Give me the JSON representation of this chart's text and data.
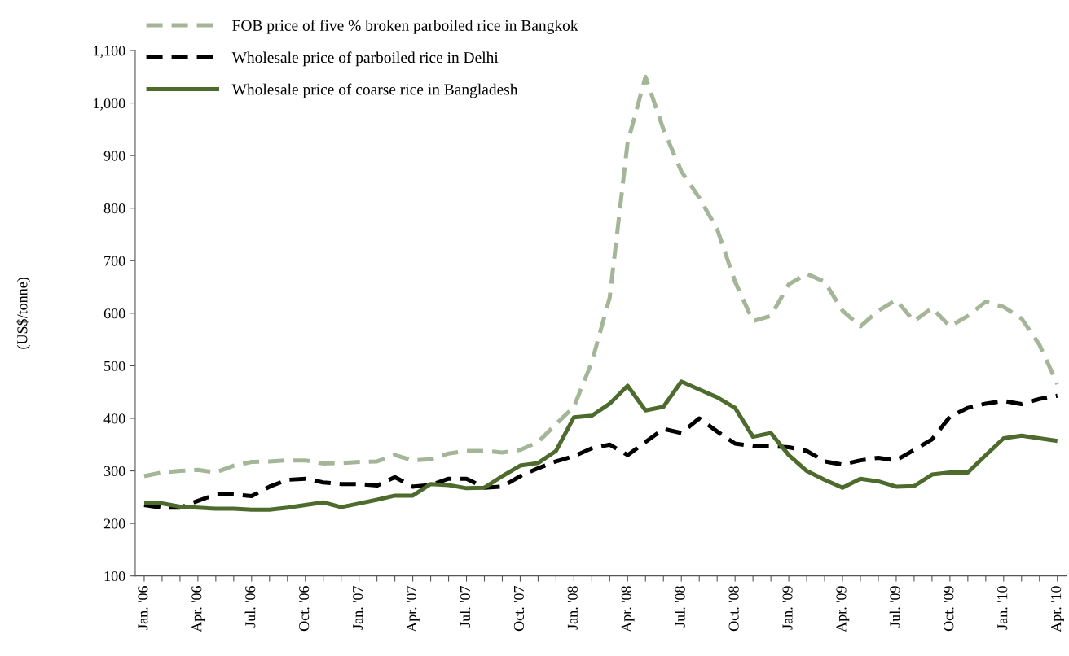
{
  "chart_data": {
    "type": "line",
    "ylabel": "(US$/tonne)",
    "categories": [
      "Jan. '06",
      null,
      null,
      "Apr. '06",
      null,
      null,
      "Jul. '06",
      null,
      null,
      "Oct. '06",
      null,
      null,
      "Jan. '07",
      null,
      null,
      "Apr. '07",
      null,
      null,
      "Jul. '07",
      null,
      null,
      "Oct. '07",
      null,
      null,
      "Jan. '08",
      null,
      null,
      "Apr. '08",
      null,
      null,
      "Jul. '08",
      null,
      null,
      "Oct. '08",
      null,
      null,
      "Jan. '09",
      null,
      null,
      "Apr. '09",
      null,
      null,
      "Jul. '09",
      null,
      null,
      "Oct. '09",
      null,
      null,
      "Jan. '10",
      null,
      null,
      "Apr. '10"
    ],
    "ylim": [
      100,
      1100
    ],
    "yticks": [
      100,
      200,
      300,
      400,
      500,
      600,
      700,
      800,
      900,
      {
        "value": 1000,
        "label": "1,000"
      },
      {
        "value": 1100,
        "label": "1,100"
      }
    ],
    "grid": false,
    "legend": "top left",
    "marker": "none",
    "series": [
      {
        "name": "FOB price of five % broken parboiled rice in Bangkok",
        "color": "#a5b597",
        "line_style": "dashed",
        "values": [
          290,
          297,
          300,
          302,
          297,
          310,
          317,
          318,
          320,
          320,
          314,
          315,
          317,
          318,
          330,
          320,
          322,
          333,
          338,
          338,
          335,
          340,
          355,
          389,
          422,
          507,
          630,
          925,
          1050,
          950,
          870,
          820,
          760,
          660,
          585,
          595,
          655,
          675,
          660,
          605,
          575,
          605,
          625,
          585,
          610,
          575,
          595,
          622,
          612,
          590,
          540,
          465
        ]
      },
      {
        "name": "Wholesale price of parboiled rice in Delhi",
        "color": "#000000",
        "line_style": "dashed",
        "values": [
          235,
          230,
          230,
          243,
          255,
          255,
          252,
          270,
          283,
          285,
          278,
          275,
          275,
          272,
          288,
          270,
          273,
          285,
          285,
          268,
          270,
          290,
          305,
          318,
          328,
          343,
          350,
          330,
          355,
          380,
          372,
          400,
          375,
          352,
          347,
          347,
          345,
          338,
          318,
          312,
          320,
          325,
          320,
          340,
          360,
          403,
          420,
          428,
          433,
          427,
          437,
          443
        ]
      },
      {
        "name": "Wholesale price of coarse rice in Bangladesh",
        "color": "#4e6b2e",
        "line_style": "solid",
        "values": [
          238,
          238,
          232,
          230,
          228,
          228,
          226,
          226,
          230,
          235,
          240,
          231,
          238,
          245,
          253,
          253,
          275,
          273,
          267,
          268,
          290,
          310,
          315,
          338,
          402,
          405,
          428,
          462,
          415,
          422,
          470,
          455,
          440,
          420,
          365,
          372,
          330,
          300,
          283,
          268,
          285,
          280,
          270,
          271,
          293,
          297,
          297,
          330,
          362,
          367,
          362,
          357
        ]
      }
    ]
  }
}
